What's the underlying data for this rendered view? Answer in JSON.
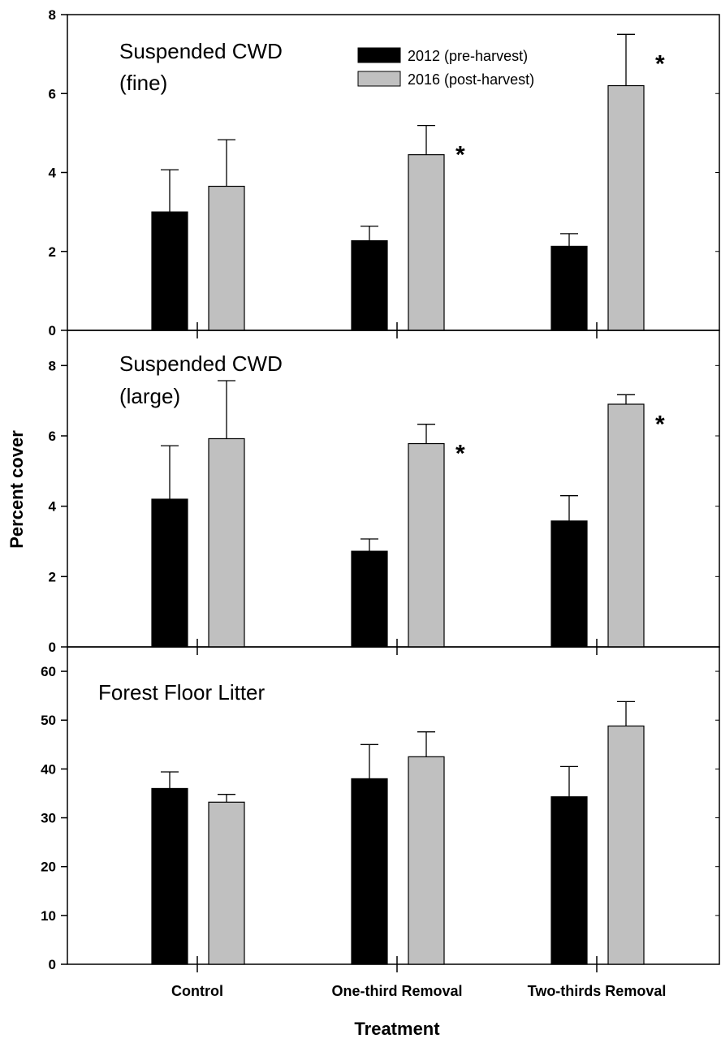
{
  "chart_data": {
    "type": "bar",
    "ylabel": "Percent cover",
    "xlabel": "Treatment",
    "categories": [
      "Control",
      "One-third Removal",
      "Two-thirds Removal"
    ],
    "legend": {
      "placement": "top-center",
      "entries": [
        {
          "name": "2012 (pre-harvest)",
          "color": "#000000"
        },
        {
          "name": "2016 (post-harvest)",
          "color": "#c0c0c0"
        }
      ]
    },
    "panels": [
      {
        "title_lines": [
          "Suspended CWD",
          "(fine)"
        ],
        "ylim": [
          0,
          8
        ],
        "yticks": [
          0,
          2,
          4,
          6,
          8
        ],
        "series": [
          {
            "name": "2012 (pre-harvest)",
            "values": [
              3.0,
              2.27,
              2.13
            ],
            "errors": [
              1.07,
              0.37,
              0.32
            ]
          },
          {
            "name": "2016 (post-harvest)",
            "values": [
              3.65,
              4.45,
              6.2
            ],
            "errors": [
              1.18,
              0.74,
              1.3
            ]
          }
        ],
        "significant": [
          false,
          true,
          true
        ]
      },
      {
        "title_lines": [
          "Suspended CWD",
          "(large)"
        ],
        "ylim": [
          0,
          9
        ],
        "yticks": [
          0,
          2,
          4,
          6,
          8
        ],
        "series": [
          {
            "name": "2012 (pre-harvest)",
            "values": [
              4.2,
              2.72,
              3.58
            ],
            "errors": [
              1.52,
              0.35,
              0.72
            ]
          },
          {
            "name": "2016 (post-harvest)",
            "values": [
              5.92,
              5.78,
              6.9
            ],
            "errors": [
              1.65,
              0.55,
              0.27
            ]
          }
        ],
        "significant": [
          false,
          true,
          true
        ]
      },
      {
        "title_lines": [
          "Forest Floor Litter"
        ],
        "ylim": [
          0,
          65
        ],
        "yticks": [
          0,
          10,
          20,
          30,
          40,
          50,
          60
        ],
        "series": [
          {
            "name": "2012 (pre-harvest)",
            "values": [
              36.0,
              38.0,
              34.3
            ],
            "errors": [
              3.4,
              7.0,
              6.2
            ]
          },
          {
            "name": "2016 (post-harvest)",
            "values": [
              33.2,
              42.5,
              48.8
            ],
            "errors": [
              1.6,
              5.1,
              5.0
            ]
          }
        ],
        "significant": [
          false,
          false,
          false
        ]
      }
    ],
    "significance_marker": "*"
  }
}
